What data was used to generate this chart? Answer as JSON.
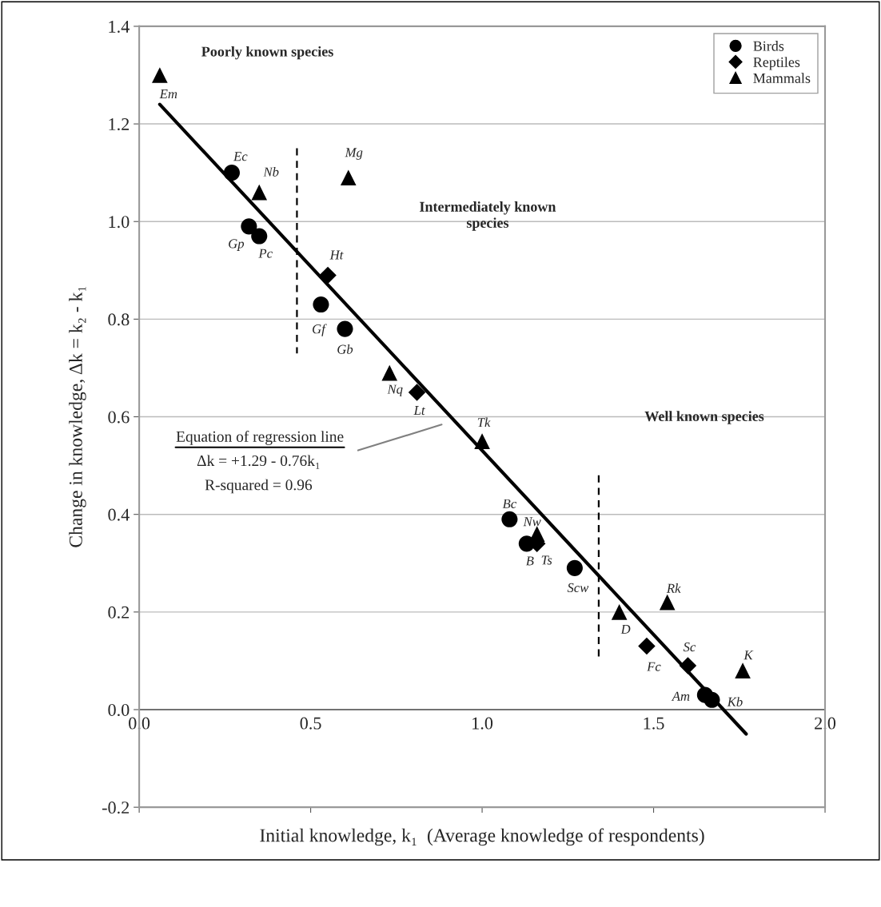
{
  "chart_data": {
    "type": "scatter",
    "xlabel": "Initial knowledge, k₁  (Average knowledge of respondents)",
    "ylabel": "Change in knowledge, Δk = k₂ - k₁",
    "xlim": [
      0,
      2.0
    ],
    "xticks": [
      {
        "value": 0,
        "label": "0.0"
      },
      0.5,
      {
        "value": 1,
        "label": "1.0"
      },
      1.5,
      {
        "value": 2,
        "label": "2.0"
      }
    ],
    "ylim": [
      -0.2,
      1.4
    ],
    "yticks": [
      {
        "value": -0.2,
        "label": "-0.2"
      },
      {
        "value": 0,
        "label": "0.0"
      },
      0.2,
      0.4,
      0.6,
      0.8,
      {
        "value": 1,
        "label": "1.0"
      },
      1.2,
      1.4
    ],
    "grid": "y",
    "legend": "top right",
    "series": [
      {
        "name": "Birds",
        "color": "#000000",
        "marker": "circle",
        "x": [
          0.27,
          0.32,
          0.35,
          0.53,
          0.6,
          1.08,
          1.13,
          1.27,
          1.65,
          1.67
        ],
        "values": [
          1.1,
          0.99,
          0.97,
          0.83,
          0.78,
          0.39,
          0.34,
          0.29,
          0.03,
          0.02
        ]
      },
      {
        "name": "Reptiles",
        "color": "#000000",
        "marker": "diamond",
        "x": [
          0.55,
          0.81,
          1.16,
          1.48,
          1.6
        ],
        "values": [
          0.89,
          0.65,
          0.34,
          0.13,
          0.09
        ]
      },
      {
        "name": "Mammals",
        "color": "#000000",
        "marker": "triangle",
        "x": [
          0.06,
          0.35,
          0.61,
          0.73,
          1.0,
          1.16,
          1.4,
          1.54,
          1.76
        ],
        "values": [
          1.3,
          1.06,
          1.09,
          0.69,
          0.55,
          0.36,
          0.2,
          0.22,
          0.08
        ]
      },
      {
        "type": "line",
        "color": "#000000",
        "marker": "none",
        "line_style": "solid",
        "x": [
          0.06,
          1.77
        ],
        "values": [
          1.24,
          -0.05
        ]
      },
      {
        "type": "line",
        "color": "#000000",
        "marker": "none",
        "line_style": "dashed",
        "x": [
          0.46,
          0.46
        ],
        "values": [
          1.15,
          0.73
        ]
      },
      {
        "type": "line",
        "color": "#000000",
        "marker": "none",
        "line_style": "dashed",
        "x": [
          1.34,
          1.34
        ],
        "values": [
          0.48,
          0.1
        ]
      }
    ],
    "annotations": [
      "Poorly known species",
      "Intermediately known\nspecies",
      "Well known species",
      "Equation of regression line",
      "Δk = +1.29 - 0.76k₁",
      "R-squared = 0.96",
      {
        "text": "Em",
        "x": 0.06,
        "y": 1.3
      },
      {
        "text": "Ec",
        "x": 0.27,
        "y": 1.1
      },
      {
        "text": "Nb",
        "x": 0.35,
        "y": 1.06
      },
      {
        "text": "Mg",
        "x": 0.61,
        "y": 1.09
      },
      {
        "text": "Gp",
        "x": 0.32,
        "y": 0.99
      },
      {
        "text": "Pc",
        "x": 0.35,
        "y": 0.97
      },
      {
        "text": "Ht",
        "x": 0.55,
        "y": 0.89
      },
      {
        "text": "Gf",
        "x": 0.53,
        "y": 0.83
      },
      {
        "text": "Gb",
        "x": 0.6,
        "y": 0.78
      },
      {
        "text": "Nq",
        "x": 0.73,
        "y": 0.69
      },
      {
        "text": "Lt",
        "x": 0.81,
        "y": 0.65
      },
      {
        "text": "Tk",
        "x": 1.0,
        "y": 0.55
      },
      {
        "text": "Bc",
        "x": 1.08,
        "y": 0.39
      },
      {
        "text": "Nw",
        "x": 1.16,
        "y": 0.36
      },
      {
        "text": "B",
        "x": 1.13,
        "y": 0.34
      },
      {
        "text": "Ts",
        "x": 1.16,
        "y": 0.34
      },
      {
        "text": "Scw",
        "x": 1.27,
        "y": 0.29
      },
      {
        "text": "D",
        "x": 1.4,
        "y": 0.2
      },
      {
        "text": "Rk",
        "x": 1.54,
        "y": 0.22
      },
      {
        "text": "Fc",
        "x": 1.48,
        "y": 0.13
      },
      {
        "text": "Sc",
        "x": 1.6,
        "y": 0.09
      },
      {
        "text": "K",
        "x": 1.76,
        "y": 0.08
      },
      {
        "text": "Am",
        "x": 1.65,
        "y": 0.03
      },
      {
        "text": "Kb",
        "x": 1.67,
        "y": 0.02
      }
    ]
  }
}
